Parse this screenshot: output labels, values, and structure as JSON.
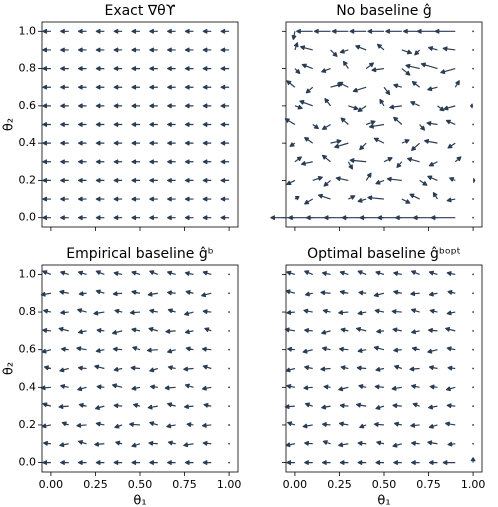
{
  "chart_data": [
    {
      "type": "quiver",
      "title": "Exact ∇θϒ",
      "ylabel": "θ₂",
      "color": "#2b3d55",
      "x": [
        0,
        0.1,
        0.2,
        0.3,
        0.4,
        0.5,
        0.6,
        0.7,
        0.8,
        0.9,
        1
      ],
      "y": [
        0,
        0.1,
        0.2,
        0.3,
        0.4,
        0.5,
        0.6,
        0.7,
        0.8,
        0.9,
        1
      ],
      "u": [
        [
          -1,
          -1,
          -1,
          -1,
          -1,
          -1,
          -1,
          -1,
          -1,
          -1,
          -1
        ],
        [
          -1,
          -1,
          -1,
          -1,
          -1,
          -1,
          -1,
          -1,
          -1,
          -1,
          -1
        ],
        [
          -1,
          -1,
          -1,
          -1,
          -1,
          -1,
          -1,
          -1,
          -1,
          -1,
          -1
        ],
        [
          -1,
          -1,
          -1,
          -1,
          -1,
          -1,
          -1,
          -1,
          -1,
          -1,
          -1
        ],
        [
          -1,
          -1,
          -1,
          -1,
          -1,
          -1,
          -1,
          -1,
          -1,
          -1,
          -1
        ],
        [
          -1,
          -1,
          -1,
          -1,
          -1,
          -1,
          -1,
          -1,
          -1,
          -1,
          -1
        ],
        [
          -1,
          -1,
          -1,
          -1,
          -1,
          -1,
          -1,
          -1,
          -1,
          -1,
          -1
        ],
        [
          -1,
          -1,
          -1,
          -1,
          -1,
          -1,
          -1,
          -1,
          -1,
          -1,
          -1
        ],
        [
          -1,
          -1,
          -1,
          -1,
          -1,
          -1,
          -1,
          -1,
          -1,
          -1,
          -1
        ],
        [
          -1,
          -1,
          -1,
          -1,
          -1,
          -1,
          -1,
          -1,
          -1,
          -1,
          -1
        ],
        [
          -1,
          -1,
          -1,
          -1,
          -1,
          -1,
          -1,
          -1,
          -1,
          -1,
          -1
        ]
      ],
      "v": [
        [
          0,
          0,
          0,
          0,
          0,
          0,
          0,
          0,
          0,
          0,
          0
        ],
        [
          0,
          0,
          0,
          0,
          0,
          0,
          0,
          0,
          0,
          0,
          0
        ],
        [
          0,
          0,
          0,
          0,
          0,
          0,
          0,
          0,
          0,
          0,
          0
        ],
        [
          0,
          0,
          0,
          0,
          0,
          0,
          0,
          0,
          0,
          0,
          0
        ],
        [
          0,
          0,
          0,
          0,
          0,
          0,
          0,
          0,
          0,
          0,
          0
        ],
        [
          0,
          0,
          0,
          0,
          0,
          0,
          0,
          0,
          0,
          0,
          0
        ],
        [
          0,
          0,
          0,
          0,
          0,
          0,
          0,
          0,
          0,
          0,
          0
        ],
        [
          0,
          0,
          0,
          0,
          0,
          0,
          0,
          0,
          0,
          0,
          0
        ],
        [
          0,
          0,
          0,
          0,
          0,
          0,
          0,
          0,
          0,
          0,
          0
        ],
        [
          0,
          0,
          0,
          0,
          0,
          0,
          0,
          0,
          0,
          0,
          0
        ],
        [
          0,
          0,
          0,
          0,
          0,
          0,
          0,
          0,
          0,
          0,
          0
        ]
      ],
      "xlim": [
        -0.05,
        1.05
      ],
      "ylim": [
        -0.05,
        1.05
      ],
      "show_xticklabels": false,
      "show_yticklabels": true,
      "xticks": [
        0,
        0.25,
        0.5,
        0.75,
        1
      ],
      "yticks": [
        {
          "value": 0,
          "label": "0.0"
        },
        0.2,
        0.4,
        0.6,
        0.8,
        {
          "value": 1,
          "label": "1.0"
        }
      ]
    },
    {
      "type": "quiver",
      "title": "No baseline ĝ",
      "color": "#2b3d55",
      "x": [
        0,
        0.1,
        0.2,
        0.3,
        0.4,
        0.5,
        0.6,
        0.7,
        0.8,
        0.9,
        1
      ],
      "y": [
        0,
        0.1,
        0.2,
        0.3,
        0.4,
        0.5,
        0.6,
        0.7,
        0.8,
        0.9,
        1
      ],
      "u": [
        [
          -3,
          -3,
          -3,
          -3,
          -3,
          -3,
          -3,
          -3,
          -3,
          -3,
          0
        ],
        [
          0.5,
          -1,
          -1.5,
          0.8,
          -1,
          -2,
          1,
          -1.2,
          -0.5,
          -1,
          0
        ],
        [
          -1,
          1.2,
          -0.8,
          -1.5,
          0.6,
          -1,
          -1.8,
          0.9,
          -1.2,
          -0.7,
          0.2
        ],
        [
          0.8,
          -1.4,
          -1,
          0.5,
          -2,
          1,
          -0.6,
          -1.5,
          -1,
          0.7,
          0
        ],
        [
          -0.6,
          -1,
          1.3,
          -1.7,
          -0.8,
          -1.2,
          0.9,
          -1,
          -1.6,
          -0.9,
          0
        ],
        [
          -1.2,
          0.7,
          -1,
          -0.9,
          1.1,
          -1.8,
          -1,
          0.6,
          -1.3,
          -1.1,
          0
        ],
        [
          0.9,
          -1.6,
          -0.7,
          1.2,
          -1,
          -0.5,
          -1.5,
          -1.1,
          0.8,
          -1.4,
          -0.3
        ],
        [
          -1,
          -0.8,
          1.4,
          -1.2,
          -1.6,
          0.7,
          -1,
          -0.9,
          -1.2,
          0.5,
          0
        ],
        [
          0.6,
          -1.3,
          -1.1,
          -0.6,
          0.9,
          -1.5,
          1,
          -1.7,
          -2,
          -1.8,
          0
        ],
        [
          0.3,
          -1.5,
          0.8,
          -1,
          -1.3,
          -0.8,
          1.2,
          -0.6,
          -1.1,
          -1.5,
          0
        ],
        [
          -0.2,
          -2,
          -2,
          -2,
          -2,
          -2,
          -2,
          -2,
          -2.5,
          -2.5,
          0
        ]
      ],
      "v": [
        [
          0,
          0,
          0,
          0,
          0,
          0,
          0,
          0,
          0,
          0,
          0
        ],
        [
          0.3,
          -0.6,
          0.5,
          0.4,
          -0.3,
          0.2,
          -0.5,
          0.6,
          0.8,
          -0.2,
          0
        ],
        [
          -0.5,
          0.4,
          -0.7,
          0.3,
          0.9,
          -0.4,
          0.2,
          -0.6,
          0.5,
          0.3,
          0
        ],
        [
          0.6,
          -0.3,
          0.8,
          -0.9,
          0.2,
          0.5,
          -0.7,
          0.4,
          -0.5,
          0.6,
          0
        ],
        [
          -0.4,
          0.7,
          0.3,
          -0.5,
          -0.8,
          0.6,
          0.4,
          -0.9,
          0.3,
          -0.6,
          0
        ],
        [
          0.7,
          -0.5,
          -0.6,
          0.8,
          0.4,
          -0.3,
          0.9,
          -0.7,
          0.2,
          0.5,
          0
        ],
        [
          -0.3,
          0.6,
          0.9,
          -0.4,
          -0.7,
          0.8,
          -0.2,
          0.5,
          -0.6,
          -0.4,
          0
        ],
        [
          0.8,
          -0.7,
          0.4,
          0.6,
          -0.5,
          -0.9,
          0.3,
          0.7,
          -0.3,
          0.8,
          0
        ],
        [
          -0.6,
          0.5,
          -0.4,
          0.9,
          0.7,
          -0.2,
          -0.8,
          0.4,
          0.6,
          -0.5,
          0
        ],
        [
          0.9,
          0.4,
          -0.8,
          -0.3,
          0.5,
          0.7,
          -0.4,
          -0.6,
          0.3,
          0.2,
          0
        ],
        [
          -1,
          0,
          0,
          0,
          0,
          0,
          0,
          0,
          0,
          0,
          0
        ]
      ],
      "xlim": [
        -0.05,
        1.05
      ],
      "ylim": [
        -0.05,
        1.05
      ],
      "show_xticklabels": false,
      "show_yticklabels": false,
      "xticks": [
        0,
        0.25,
        0.5,
        0.75,
        1
      ],
      "yticks": [
        0,
        0.2,
        0.4,
        0.6,
        0.8,
        1
      ]
    },
    {
      "type": "quiver",
      "title": "Empirical baseline ĝᵇ",
      "xlabel": "θ₁",
      "ylabel": "θ₂",
      "color": "#2b3d55",
      "x": [
        0,
        0.1,
        0.2,
        0.3,
        0.4,
        0.5,
        0.6,
        0.7,
        0.8,
        0.9,
        1
      ],
      "y": [
        0,
        0.1,
        0.2,
        0.3,
        0.4,
        0.5,
        0.6,
        0.7,
        0.8,
        0.9,
        1
      ],
      "u": [
        [
          -1,
          -1,
          -1,
          -1,
          -1,
          -1,
          -1,
          -1,
          -1,
          -1,
          0
        ],
        [
          -0.9,
          -1.1,
          -1,
          -1.2,
          -0.8,
          -1,
          -1.1,
          -0.9,
          -1.2,
          -1,
          0
        ],
        [
          -1.1,
          -0.8,
          -1.2,
          -1,
          -0.9,
          -1.3,
          -1,
          -1.1,
          -0.8,
          -1.1,
          0
        ],
        [
          -1,
          -1.2,
          -0.9,
          -1.1,
          -1,
          -0.8,
          -1.2,
          -1,
          -1.1,
          -0.9,
          0
        ],
        [
          -1.2,
          -1,
          -1.1,
          -0.9,
          -1.2,
          -1,
          -0.9,
          -1.3,
          -1,
          -1.1,
          0
        ],
        [
          -0.8,
          -1.1,
          -1,
          -1.2,
          -1,
          -1.1,
          -1,
          -0.9,
          -1.2,
          -1,
          0
        ],
        [
          -1.1,
          -0.9,
          -1.2,
          -1,
          -1.1,
          -0.9,
          -1.3,
          -1,
          -0.9,
          -1.1,
          0
        ],
        [
          -1,
          -1.2,
          -1,
          -0.9,
          -1.2,
          -1,
          -1.1,
          -1.2,
          -1,
          -0.8,
          0
        ],
        [
          -0.9,
          -1,
          -1.1,
          -1.3,
          -0.9,
          -1.2,
          -1,
          -0.9,
          -1.1,
          -1,
          0
        ],
        [
          -1.2,
          -1.1,
          -0.9,
          -1,
          -1.1,
          -1,
          -1.2,
          -1,
          -0.9,
          -1.2,
          0
        ],
        [
          -1,
          -1,
          -1,
          -1,
          -1,
          -1,
          -1,
          -1,
          -1,
          -1,
          0
        ]
      ],
      "v": [
        [
          0,
          0,
          0,
          0,
          0,
          0,
          0,
          0,
          0,
          0,
          0
        ],
        [
          0.1,
          -0.2,
          0.3,
          -0.1,
          0.2,
          -0.3,
          0.1,
          0.2,
          -0.2,
          0.1,
          0
        ],
        [
          -0.2,
          0.3,
          -0.1,
          0.2,
          -0.3,
          0.1,
          0.3,
          -0.2,
          0.1,
          -0.1,
          0
        ],
        [
          0.3,
          -0.1,
          0.2,
          -0.3,
          0.1,
          0.2,
          -0.2,
          0.3,
          -0.1,
          0.2,
          0
        ],
        [
          -0.1,
          0.2,
          -0.3,
          0.1,
          0.3,
          -0.2,
          0.1,
          -0.1,
          0.3,
          -0.2,
          0
        ],
        [
          0.2,
          -0.3,
          0.1,
          0.3,
          -0.2,
          0.1,
          -0.3,
          0.2,
          -0.1,
          0.3,
          0
        ],
        [
          -0.3,
          0.1,
          0.2,
          -0.2,
          0.1,
          0.3,
          -0.1,
          -0.3,
          0.2,
          0.1,
          0
        ],
        [
          0.1,
          0.3,
          -0.2,
          0.1,
          -0.3,
          0.2,
          0.3,
          -0.1,
          -0.2,
          0.3,
          0
        ],
        [
          0.2,
          -0.1,
          0.3,
          -0.2,
          0.2,
          -0.1,
          0.2,
          0.3,
          -0.3,
          0.1,
          0
        ],
        [
          -0.2,
          0.2,
          -0.1,
          0.3,
          -0.1,
          0.2,
          -0.2,
          0.1,
          0.2,
          -0.3,
          0
        ],
        [
          0.4,
          0.3,
          0.3,
          0.4,
          0.2,
          0.3,
          0.4,
          0.3,
          0.2,
          0.3,
          0
        ]
      ],
      "xlim": [
        -0.05,
        1.05
      ],
      "ylim": [
        -0.05,
        1.05
      ],
      "show_xticklabels": true,
      "show_yticklabels": true,
      "xticks": [
        {
          "value": 0,
          "label": "0.00"
        },
        0.25,
        {
          "value": 0.5,
          "label": "0.50"
        },
        0.75,
        {
          "value": 1,
          "label": "1.00"
        }
      ],
      "yticks": [
        {
          "value": 0,
          "label": "0.0"
        },
        0.2,
        0.4,
        0.6,
        0.8,
        {
          "value": 1,
          "label": "1.0"
        }
      ]
    },
    {
      "type": "quiver",
      "title": "Optimal baseline ĝᵇᵒᵖᵗ",
      "xlabel": "θ₁",
      "color": "#2b3d55",
      "x": [
        0,
        0.1,
        0.2,
        0.3,
        0.4,
        0.5,
        0.6,
        0.7,
        0.8,
        0.9,
        1
      ],
      "y": [
        0,
        0.1,
        0.2,
        0.3,
        0.4,
        0.5,
        0.6,
        0.7,
        0.8,
        0.9,
        1
      ],
      "u": [
        [
          -1,
          -1,
          -1,
          -1,
          -1,
          -1,
          -1,
          -1,
          -1,
          -1.5,
          0
        ],
        [
          -1.1,
          -1,
          -0.9,
          -1.2,
          -1,
          -0.9,
          -1.1,
          -1,
          -1.2,
          -0.9,
          0
        ],
        [
          -0.9,
          -1.2,
          -1,
          -1.1,
          -0.8,
          -1.2,
          -0.9,
          -1.1,
          -1,
          -1.2,
          0
        ],
        [
          -1.2,
          -0.9,
          -1.1,
          -1,
          -1.2,
          -1,
          -1.1,
          -0.8,
          -1.1,
          -1,
          0
        ],
        [
          -1,
          -1.1,
          -0.8,
          -1.2,
          -0.9,
          -1.1,
          -1.2,
          -1,
          -0.9,
          -1.1,
          0
        ],
        [
          -1.1,
          -1,
          -1.2,
          -0.9,
          -1.1,
          -1,
          -0.9,
          -1.2,
          -1,
          -0.9,
          0
        ],
        [
          -0.9,
          -1.2,
          -1,
          -1.1,
          -1,
          -1.2,
          -1,
          -0.9,
          -1.2,
          -1,
          0
        ],
        [
          -1.2,
          -1,
          -1.1,
          -0.9,
          -1.2,
          -0.9,
          -1.1,
          -1,
          -1.1,
          -1.2,
          0
        ],
        [
          -1,
          -1.1,
          -0.9,
          -1.2,
          -1,
          -1.1,
          -1.2,
          -1,
          -0.9,
          -1,
          0
        ],
        [
          -1.1,
          -0.9,
          -1.2,
          -1,
          -0.9,
          -1.2,
          -1,
          -1.1,
          -1,
          -0.9,
          0
        ],
        [
          -1,
          -1,
          -1,
          -1,
          -1,
          -1,
          -1,
          -1,
          -1,
          -1,
          0
        ]
      ],
      "v": [
        [
          0,
          0,
          0,
          0,
          0,
          0,
          0,
          0,
          0,
          0,
          0.6
        ],
        [
          -0.2,
          0.1,
          0.3,
          -0.2,
          0.1,
          0.2,
          -0.3,
          0.1,
          0.2,
          -0.1,
          0
        ],
        [
          0.3,
          -0.2,
          0.1,
          0.2,
          -0.3,
          0.1,
          0.2,
          -0.1,
          -0.3,
          0.2,
          0
        ],
        [
          -0.1,
          0.3,
          -0.2,
          0.1,
          0.2,
          -0.3,
          0.1,
          0.3,
          -0.2,
          0.1,
          0
        ],
        [
          0.2,
          -0.1,
          0.1,
          -0.3,
          0.2,
          0.1,
          -0.2,
          0.2,
          0.1,
          -0.3,
          0
        ],
        [
          -0.3,
          0.2,
          -0.1,
          0.2,
          0.1,
          -0.2,
          0.3,
          -0.1,
          0.2,
          0.1,
          0
        ],
        [
          0.1,
          -0.3,
          0.2,
          0.1,
          -0.2,
          0.3,
          -0.1,
          0.2,
          -0.3,
          0.2,
          0
        ],
        [
          0.2,
          0.1,
          -0.3,
          0.2,
          0.3,
          -0.1,
          0.2,
          -0.2,
          0.1,
          0.3,
          0
        ],
        [
          -0.1,
          0.2,
          0.2,
          -0.1,
          -0.2,
          0.2,
          0.1,
          0.3,
          0.2,
          -0.2,
          0
        ],
        [
          0.3,
          -0.2,
          0.1,
          0.2,
          0.1,
          -0.3,
          0.2,
          -0.1,
          -0.2,
          0.2,
          0
        ],
        [
          0.3,
          0.4,
          0.2,
          0.3,
          0.4,
          0.3,
          0.2,
          0.4,
          0.3,
          0.2,
          0
        ]
      ],
      "xlim": [
        -0.05,
        1.05
      ],
      "ylim": [
        -0.05,
        1.05
      ],
      "show_xticklabels": true,
      "show_yticklabels": false,
      "xticks": [
        {
          "value": 0,
          "label": "0.00"
        },
        0.25,
        {
          "value": 0.5,
          "label": "0.50"
        },
        0.75,
        {
          "value": 1,
          "label": "1.00"
        }
      ],
      "yticks": [
        0,
        0.2,
        0.4,
        0.6,
        0.8,
        1
      ]
    }
  ]
}
